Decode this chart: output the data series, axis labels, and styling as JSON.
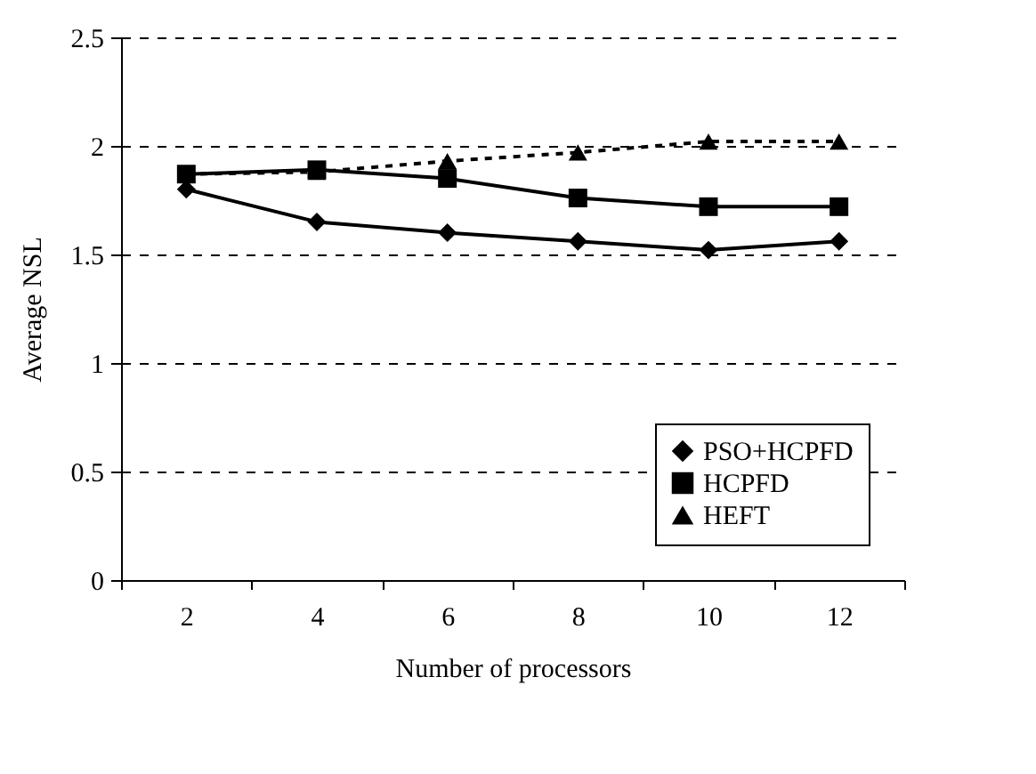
{
  "chart_data": {
    "type": "line",
    "xlabel": "Number of processors",
    "ylabel": "Average NSL",
    "categories": [
      "2",
      "4",
      "6",
      "8",
      "10",
      "12"
    ],
    "series": [
      {
        "name": "PSO+HCPFD",
        "color": "#000000",
        "marker": "diamond",
        "line_style": "solid",
        "values": [
          1.8,
          1.65,
          1.6,
          1.56,
          1.52,
          1.56
        ]
      },
      {
        "name": "HCPFD",
        "color": "#000000",
        "marker": "square",
        "line_style": "solid",
        "values": [
          1.87,
          1.89,
          1.85,
          1.76,
          1.72,
          1.72
        ]
      },
      {
        "name": "HEFT",
        "color": "#000000",
        "marker": "triangle",
        "line_style": "dashed",
        "values": [
          1.87,
          1.88,
          1.93,
          1.97,
          2.02,
          2.02
        ]
      }
    ],
    "ylim": [
      0,
      2.5
    ],
    "yticks": [
      0,
      0.5,
      1,
      1.5,
      2,
      2.5
    ],
    "grid": "y",
    "legend": "bottom right"
  }
}
